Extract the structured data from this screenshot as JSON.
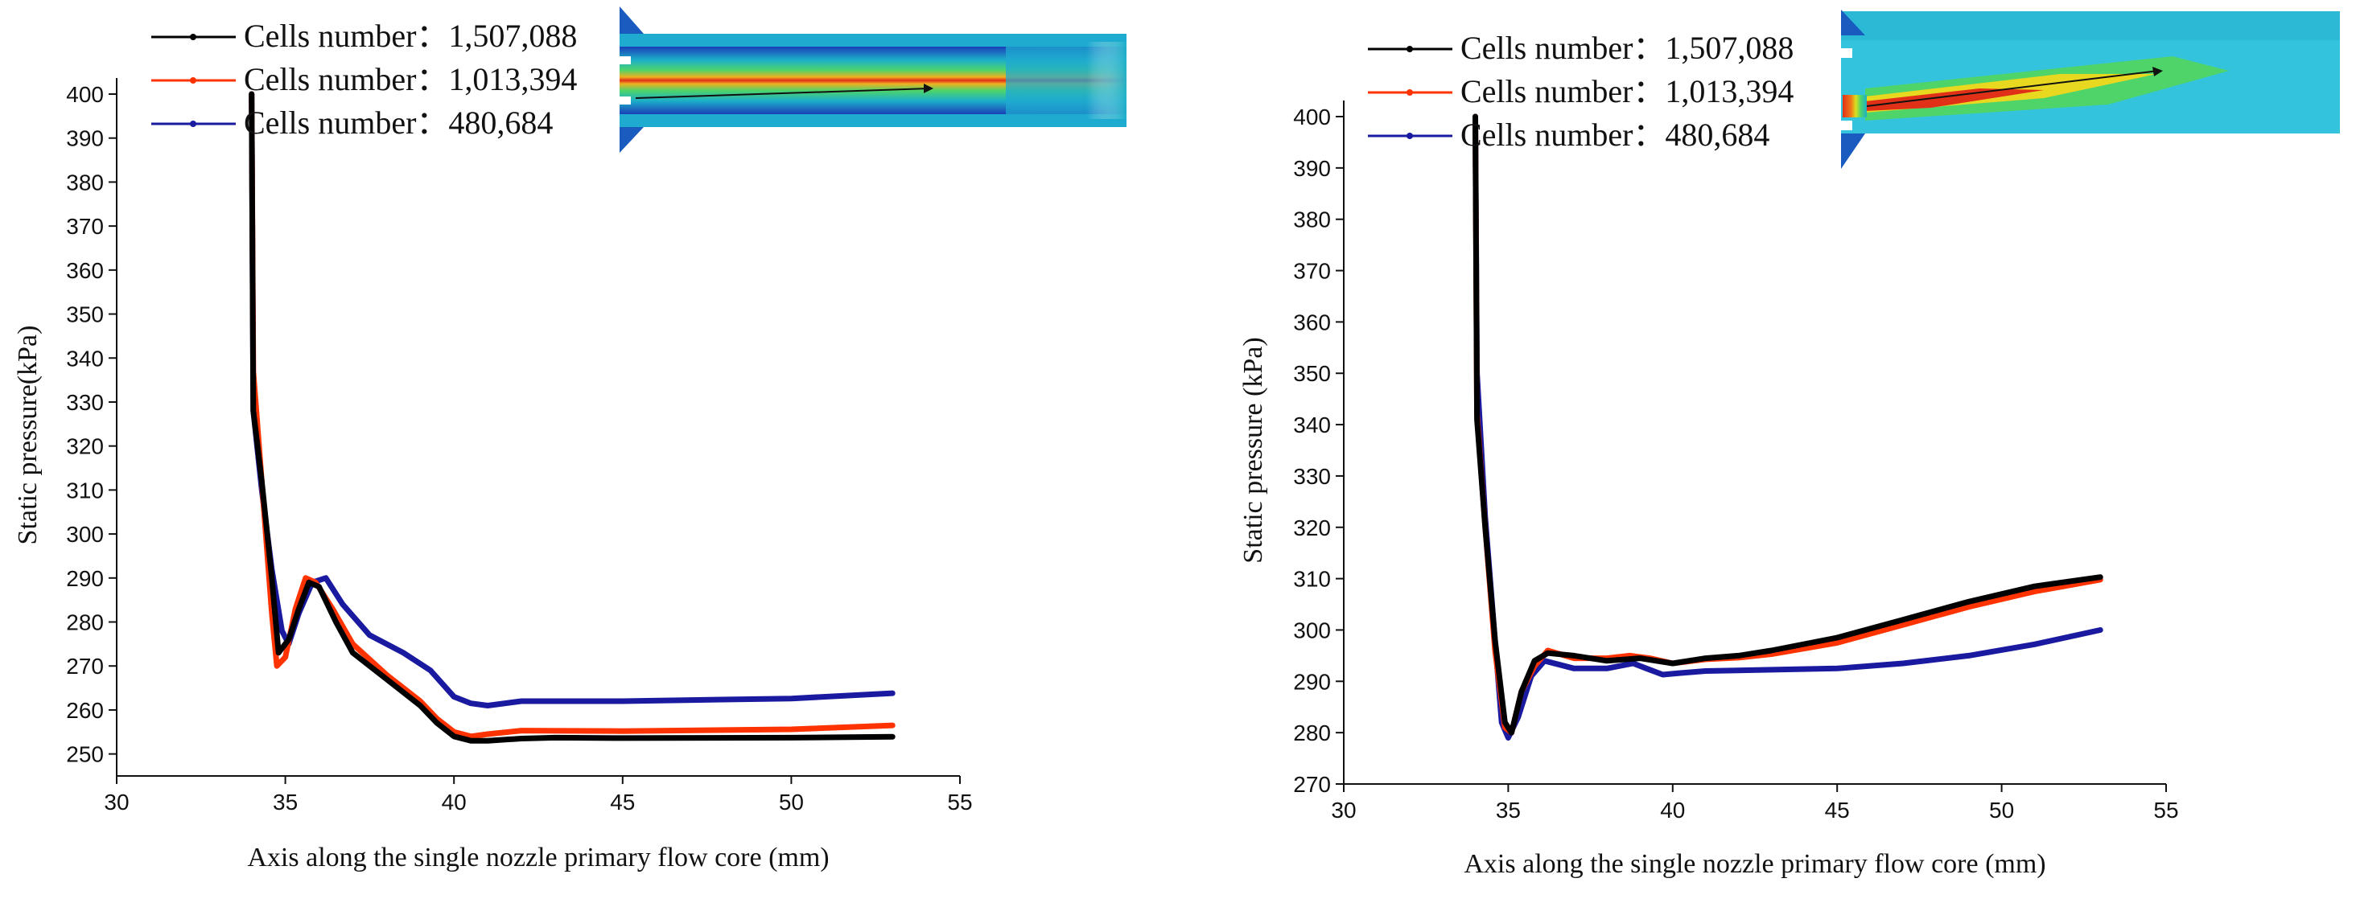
{
  "chart_data": [
    {
      "type": "line",
      "xlabel": "Axis along the single nozzle primary flow core (mm)",
      "ylabel": "Static pressure(kPa)",
      "xlim": [
        30,
        55
      ],
      "ylim": [
        245,
        400
      ],
      "x_ticks": [
        "30",
        "35",
        "40",
        "45",
        "50",
        "55"
      ],
      "y_ticks": [
        "250",
        "260",
        "270",
        "280",
        "290",
        "300",
        "310",
        "320",
        "330",
        "340",
        "350",
        "360",
        "370",
        "380",
        "390",
        "400"
      ],
      "legend_position": "top-left",
      "grid": false,
      "series": [
        {
          "name": "Cells number：1,507,088",
          "color": "#000000",
          "points": [
            [
              34.0,
              400
            ],
            [
              34.05,
              328
            ],
            [
              34.3,
              312
            ],
            [
              34.6,
              290
            ],
            [
              34.8,
              273
            ],
            [
              35.1,
              276
            ],
            [
              35.4,
              283
            ],
            [
              35.7,
              289
            ],
            [
              36.0,
              288
            ],
            [
              36.5,
              280
            ],
            [
              37.0,
              273
            ],
            [
              38.0,
              267
            ],
            [
              39.0,
              261
            ],
            [
              39.5,
              257
            ],
            [
              40.0,
              254
            ],
            [
              40.5,
              253
            ],
            [
              41.0,
              253
            ],
            [
              42.0,
              253.5
            ],
            [
              43.0,
              253.7
            ],
            [
              45.0,
              253.6
            ],
            [
              50.0,
              253.7
            ],
            [
              53.0,
              253.9
            ]
          ]
        },
        {
          "name": "Cells number：1,013,394",
          "color": "#ff3300",
          "points": [
            [
              34.0,
              400
            ],
            [
              34.05,
              337
            ],
            [
              34.3,
              312
            ],
            [
              34.6,
              282
            ],
            [
              34.75,
              270
            ],
            [
              35.0,
              272
            ],
            [
              35.3,
              283
            ],
            [
              35.6,
              290
            ],
            [
              35.9,
              289
            ],
            [
              36.4,
              283
            ],
            [
              37.0,
              275
            ],
            [
              38.0,
              268
            ],
            [
              39.0,
              262
            ],
            [
              39.5,
              258
            ],
            [
              40.0,
              255
            ],
            [
              40.5,
              254
            ],
            [
              41.0,
              254.5
            ],
            [
              42.0,
              255.3
            ],
            [
              45.0,
              255.2
            ],
            [
              50.0,
              255.6
            ],
            [
              53.0,
              256.5
            ]
          ]
        },
        {
          "name": "Cells number：480,684",
          "color": "#1a1aa0",
          "points": [
            [
              34.0,
              400
            ],
            [
              34.05,
              328
            ],
            [
              34.3,
              310
            ],
            [
              34.6,
              292
            ],
            [
              34.9,
              278
            ],
            [
              35.1,
              275
            ],
            [
              35.4,
              282
            ],
            [
              35.8,
              289
            ],
            [
              36.2,
              290
            ],
            [
              36.7,
              284
            ],
            [
              37.5,
              277
            ],
            [
              38.5,
              273
            ],
            [
              39.3,
              269
            ],
            [
              40.0,
              263
            ],
            [
              40.5,
              261.5
            ],
            [
              41.0,
              261
            ],
            [
              42.0,
              262
            ],
            [
              45.0,
              262
            ],
            [
              50.0,
              262.6
            ],
            [
              53.0,
              263.8
            ]
          ]
        }
      ]
    },
    {
      "type": "line",
      "xlabel": "Axis along the single nozzle primary flow core (mm)",
      "ylabel": "Static pressure (kPa)",
      "xlim": [
        30,
        55
      ],
      "ylim": [
        270,
        400
      ],
      "x_ticks": [
        "30",
        "35",
        "40",
        "45",
        "50",
        "55"
      ],
      "y_ticks": [
        "270",
        "280",
        "290",
        "300",
        "310",
        "320",
        "330",
        "340",
        "350",
        "360",
        "370",
        "380",
        "390",
        "400"
      ],
      "legend_position": "top-left",
      "grid": false,
      "series": [
        {
          "name": "Cells number：1,507,088",
          "color": "#000000",
          "points": [
            [
              34.0,
              400
            ],
            [
              34.05,
              341
            ],
            [
              34.3,
              320
            ],
            [
              34.6,
              298
            ],
            [
              34.9,
              282
            ],
            [
              35.1,
              280
            ],
            [
              35.4,
              288
            ],
            [
              35.8,
              294
            ],
            [
              36.2,
              295.5
            ],
            [
              37.0,
              295
            ],
            [
              38.0,
              294
            ],
            [
              39.0,
              294.5
            ],
            [
              40.0,
              293.5
            ],
            [
              41.0,
              294.5
            ],
            [
              42.0,
              295
            ],
            [
              43.0,
              296
            ],
            [
              45.0,
              298.5
            ],
            [
              47.0,
              302
            ],
            [
              49.0,
              305.5
            ],
            [
              51.0,
              308.5
            ],
            [
              53.0,
              310.3
            ]
          ]
        },
        {
          "name": "Cells number：1,013,394",
          "color": "#ff3300",
          "points": [
            [
              34.0,
              400
            ],
            [
              34.05,
              342
            ],
            [
              34.3,
              320
            ],
            [
              34.6,
              296
            ],
            [
              34.9,
              281
            ],
            [
              35.1,
              280
            ],
            [
              35.4,
              288
            ],
            [
              35.8,
              293
            ],
            [
              36.2,
              296
            ],
            [
              37.0,
              294.5
            ],
            [
              38.0,
              294.5
            ],
            [
              38.7,
              295
            ],
            [
              39.3,
              294.5
            ],
            [
              40.0,
              293.5
            ],
            [
              41.0,
              294.3
            ],
            [
              42.0,
              294.6
            ],
            [
              43.0,
              295.3
            ],
            [
              45.0,
              297.5
            ],
            [
              47.0,
              301
            ],
            [
              49.0,
              304.5
            ],
            [
              51.0,
              307.5
            ],
            [
              53.0,
              309.8
            ]
          ]
        },
        {
          "name": "Cells number：480,684",
          "color": "#1a1aa0",
          "points": [
            [
              34.0,
              400
            ],
            [
              34.05,
              350
            ],
            [
              34.3,
              322
            ],
            [
              34.6,
              298
            ],
            [
              34.8,
              282
            ],
            [
              35.0,
              279
            ],
            [
              35.3,
              283
            ],
            [
              35.7,
              291
            ],
            [
              36.1,
              294
            ],
            [
              37.0,
              292.5
            ],
            [
              38.0,
              292.5
            ],
            [
              38.8,
              293.5
            ],
            [
              39.2,
              292.5
            ],
            [
              39.7,
              291.3
            ],
            [
              40.2,
              291.6
            ],
            [
              41.0,
              292
            ],
            [
              45.0,
              292.5
            ],
            [
              47.0,
              293.5
            ],
            [
              49.0,
              295
            ],
            [
              51.0,
              297.2
            ],
            [
              53.0,
              300
            ]
          ]
        }
      ]
    }
  ]
}
